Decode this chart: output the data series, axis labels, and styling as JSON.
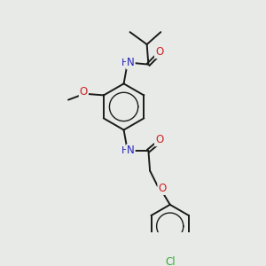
{
  "background_color": "#e8eae8",
  "atom_colors": {
    "N": "#2222bb",
    "O": "#cc2222",
    "Cl": "#33aa33",
    "C": "#1a1a1a"
  },
  "bond_color": "#1a1a1a",
  "figsize": [
    3.0,
    3.0
  ],
  "dpi": 100,
  "font_size": 8.5
}
